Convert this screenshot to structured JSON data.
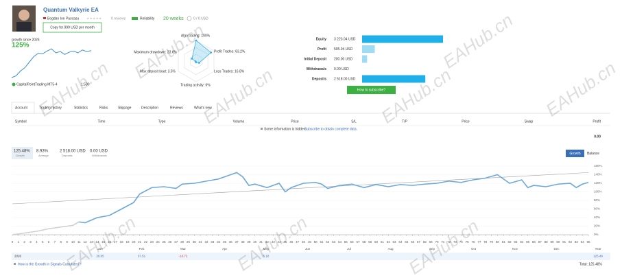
{
  "header": {
    "title": "Quantum Valkyrie EA",
    "author": "Bogdan Ion Puscasu",
    "reviews": "0 reviews",
    "reliability": "Reliability",
    "weeks": "20 weeks",
    "subscribers": "0 / 0 USD",
    "copy_button": "Copy for 999 USD per month"
  },
  "summary": {
    "growth_label": "growth since 2026",
    "growth": "125%",
    "sparkline": {
      "values": [
        0,
        8,
        30,
        45,
        70,
        95,
        110,
        108,
        120,
        130,
        112,
        118,
        105,
        115,
        120,
        112,
        125,
        118,
        122
      ],
      "ylim": [
        0,
        140
      ],
      "color": "#3b8fd6"
    },
    "broker": "CapitalPointTrading MT5-4",
    "leverage": "1:500"
  },
  "radar": {
    "color": "#3ab0e2",
    "axes": [
      {
        "label": "Algo trading: 100%",
        "value": 100
      },
      {
        "label": "Profit Trades: 83.2%",
        "value": 83.2
      },
      {
        "label": "Loss Trades: 16.8%",
        "value": 16.8
      },
      {
        "label": "Trading activity: 6%",
        "value": 6
      },
      {
        "label": "Max deposit load: 3.5%",
        "value": 3.5
      },
      {
        "label": "Maximum drawdown: 23.6%",
        "value": 23.6
      }
    ]
  },
  "balance": {
    "rows": [
      {
        "label": "Equity",
        "text": "3 223.04 USD",
        "value": 3223.04,
        "color": "#1fb0ea"
      },
      {
        "label": "Profit",
        "text": "505.04 USD",
        "value": 505.04,
        "color": "#9edcf5"
      },
      {
        "label": "Initial Deposit",
        "text": "200.00 USD",
        "value": 200,
        "color": "#9edcf5"
      },
      {
        "label": "Withdrawals",
        "text": "0.00 USD",
        "value": 0,
        "color": "#9edcf5"
      },
      {
        "label": "Deposits",
        "text": "2 518.00 USD",
        "value": 2518,
        "color": "#1fb0ea"
      }
    ],
    "subscribe_button": "How to subscribe?"
  },
  "tabs": [
    "Account",
    "Trading history",
    "Statistics",
    "Risks",
    "Slippage",
    "Description",
    "Reviews",
    "What's new"
  ],
  "table": {
    "headers": [
      "Symbol",
      "Time",
      "Type",
      "Volume",
      "Price",
      "S/L",
      "T/P",
      "Price",
      "Swap",
      "Profit"
    ],
    "note": "Some information is hidden.",
    "note_link": "Subscribe to obtain complete data.",
    "total": "0.00"
  },
  "stats": [
    {
      "value": "125.48%",
      "label": "Growth"
    },
    {
      "value": "8.93%",
      "label": "Average"
    },
    {
      "value": "2 518.00 USD",
      "label": "Deposits"
    },
    {
      "value": "0.00 USD",
      "label": "Withdrawals"
    }
  ],
  "chart": {
    "buttons": [
      "Growth",
      "Balance"
    ],
    "ylim": [
      0,
      160
    ],
    "yticks": [
      {
        "value": 0,
        "label": "0%"
      },
      {
        "value": 20,
        "label": "20%"
      },
      {
        "value": 40,
        "label": "40%"
      },
      {
        "value": 60,
        "label": "60%"
      },
      {
        "value": 80,
        "label": "80%"
      },
      {
        "value": 100,
        "label": "100%"
      },
      {
        "value": 120,
        "label": "120%"
      },
      {
        "value": 140,
        "label": "140%"
      },
      {
        "value": 160,
        "label": "160%"
      }
    ],
    "xlim": [
      0,
      95
    ],
    "xticks": [
      0,
      1,
      2,
      3,
      4,
      5,
      6,
      7,
      8,
      9,
      10,
      11,
      12,
      13,
      14,
      15,
      16,
      17,
      18,
      19,
      20,
      21,
      22,
      23,
      24,
      25,
      26,
      27,
      28,
      29,
      30,
      31,
      32,
      33,
      34,
      35,
      36,
      37,
      38,
      39,
      40,
      41,
      42,
      43,
      44,
      45,
      46,
      47,
      48,
      49,
      50,
      51,
      52,
      53,
      54,
      55,
      56,
      57,
      58,
      59,
      60,
      61,
      62,
      63,
      64,
      65,
      66,
      67,
      68,
      69,
      70,
      71,
      72,
      73,
      74,
      75,
      76,
      77,
      78,
      79,
      80,
      81,
      82,
      83,
      84,
      85,
      86,
      87,
      88,
      89,
      90,
      91,
      92,
      93,
      94,
      95
    ],
    "series": [
      {
        "color": "#cfcfcf",
        "x": [
          0,
          2,
          4,
          6,
          8,
          10,
          11
        ],
        "values": [
          0,
          4,
          8,
          14,
          18,
          22,
          30
        ]
      },
      {
        "color": "#6aa8dc",
        "x": [
          11,
          12,
          14,
          16,
          18,
          20,
          21,
          23,
          25,
          27,
          28,
          30,
          32,
          34,
          36,
          37,
          38,
          39,
          40,
          42,
          44,
          45,
          46,
          48,
          50,
          51,
          52,
          54,
          56,
          58,
          60,
          62,
          64,
          66,
          68,
          70,
          72,
          74,
          76,
          78,
          80,
          81,
          82,
          84,
          85,
          86,
          88,
          90,
          92,
          93,
          94,
          95
        ],
        "values": [
          30,
          28,
          40,
          45,
          60,
          75,
          95,
          110,
          112,
          108,
          118,
          120,
          125,
          130,
          140,
          145,
          135,
          115,
          118,
          110,
          120,
          100,
          110,
          120,
          122,
          118,
          108,
          115,
          118,
          110,
          117,
          112,
          117,
          115,
          118,
          120,
          125,
          122,
          128,
          132,
          140,
          130,
          120,
          128,
          110,
          115,
          112,
          118,
          120,
          110,
          118,
          122
        ]
      }
    ],
    "trend": {
      "color": "#a0a0a0",
      "x": [
        0,
        95
      ],
      "values": [
        72,
        145
      ]
    }
  },
  "months": {
    "headers": [
      "Jan",
      "Feb",
      "Mar",
      "Apr",
      "May",
      "Jun",
      "Jul",
      "Aug",
      "Sep",
      "Oct",
      "Nov",
      "Dec",
      "Year"
    ],
    "year": "2026",
    "values": [
      "26.05",
      "37.51",
      "-10.72",
      null,
      "5.18",
      null,
      null,
      null,
      null,
      null,
      null,
      null,
      "125.48"
    ]
  },
  "footer": {
    "link": "How is the Growth in Signals Calculated?",
    "total": "Total: 125.48%"
  },
  "watermark": "EAHub.cn"
}
